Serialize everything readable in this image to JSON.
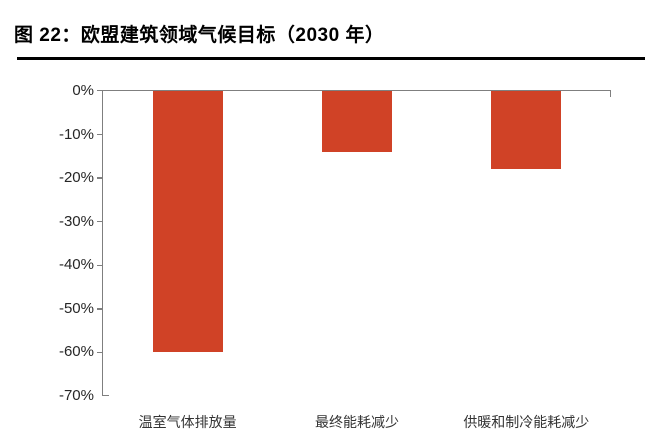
{
  "header": {
    "title": "图 22：欧盟建筑领域气候目标（2030 年）"
  },
  "chart_data": {
    "type": "bar",
    "title": "欧盟建筑领域气候目标（2030 年）",
    "figure_label": "图 22",
    "categories": [
      "温室气体排放量",
      "最终能耗减少",
      "供暖和制冷能耗减少"
    ],
    "values": [
      -60,
      -14,
      -18
    ],
    "unit": "%",
    "xlabel": "",
    "ylabel": "",
    "ylim": [
      -70,
      0
    ],
    "ytick_step": 10,
    "ytick_labels": [
      "0%",
      "-10%",
      "-20%",
      "-30%",
      "-40%",
      "-50%",
      "-60%",
      "-70%"
    ],
    "grid": false,
    "legend": null,
    "bar_color": "#d04226",
    "axis_color": "#7f7f7f",
    "tick_label_color": "#262626",
    "category_label_color": "#333333",
    "title_color": "#000000"
  }
}
